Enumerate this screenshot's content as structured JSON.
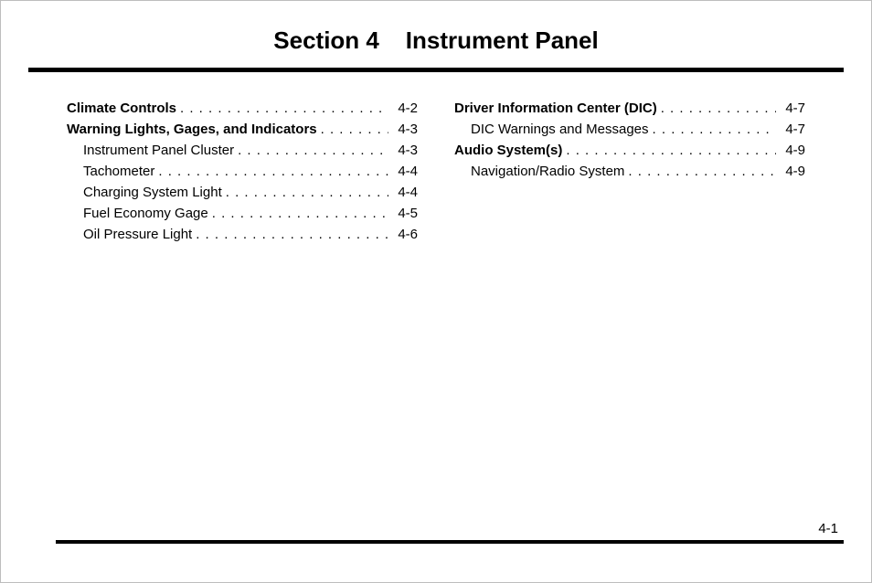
{
  "title_prefix": "Section 4",
  "title_text": "Instrument Panel",
  "page_number": "4-1",
  "columns": [
    {
      "groups": [
        {
          "head": {
            "label": "Climate Controls",
            "page": "4-2"
          },
          "items": []
        },
        {
          "head": {
            "label": "Warning Lights, Gages, and Indicators",
            "page": "4-3"
          },
          "items": [
            {
              "label": "Instrument Panel Cluster",
              "page": "4-3"
            },
            {
              "label": "Tachometer",
              "page": "4-4"
            },
            {
              "label": "Charging System Light",
              "page": "4-4"
            },
            {
              "label": "Fuel Economy Gage",
              "page": "4-5"
            },
            {
              "label": "Oil Pressure Light",
              "page": "4-6"
            }
          ]
        }
      ]
    },
    {
      "groups": [
        {
          "head": {
            "label": "Driver Information Center (DIC)",
            "page": "4-7"
          },
          "items": [
            {
              "label": "DIC Warnings and Messages",
              "page": "4-7"
            }
          ]
        },
        {
          "head": {
            "label": "Audio System(s)",
            "page": "4-9"
          },
          "items": [
            {
              "label": "Navigation/Radio System",
              "page": "4-9"
            }
          ]
        }
      ]
    }
  ]
}
